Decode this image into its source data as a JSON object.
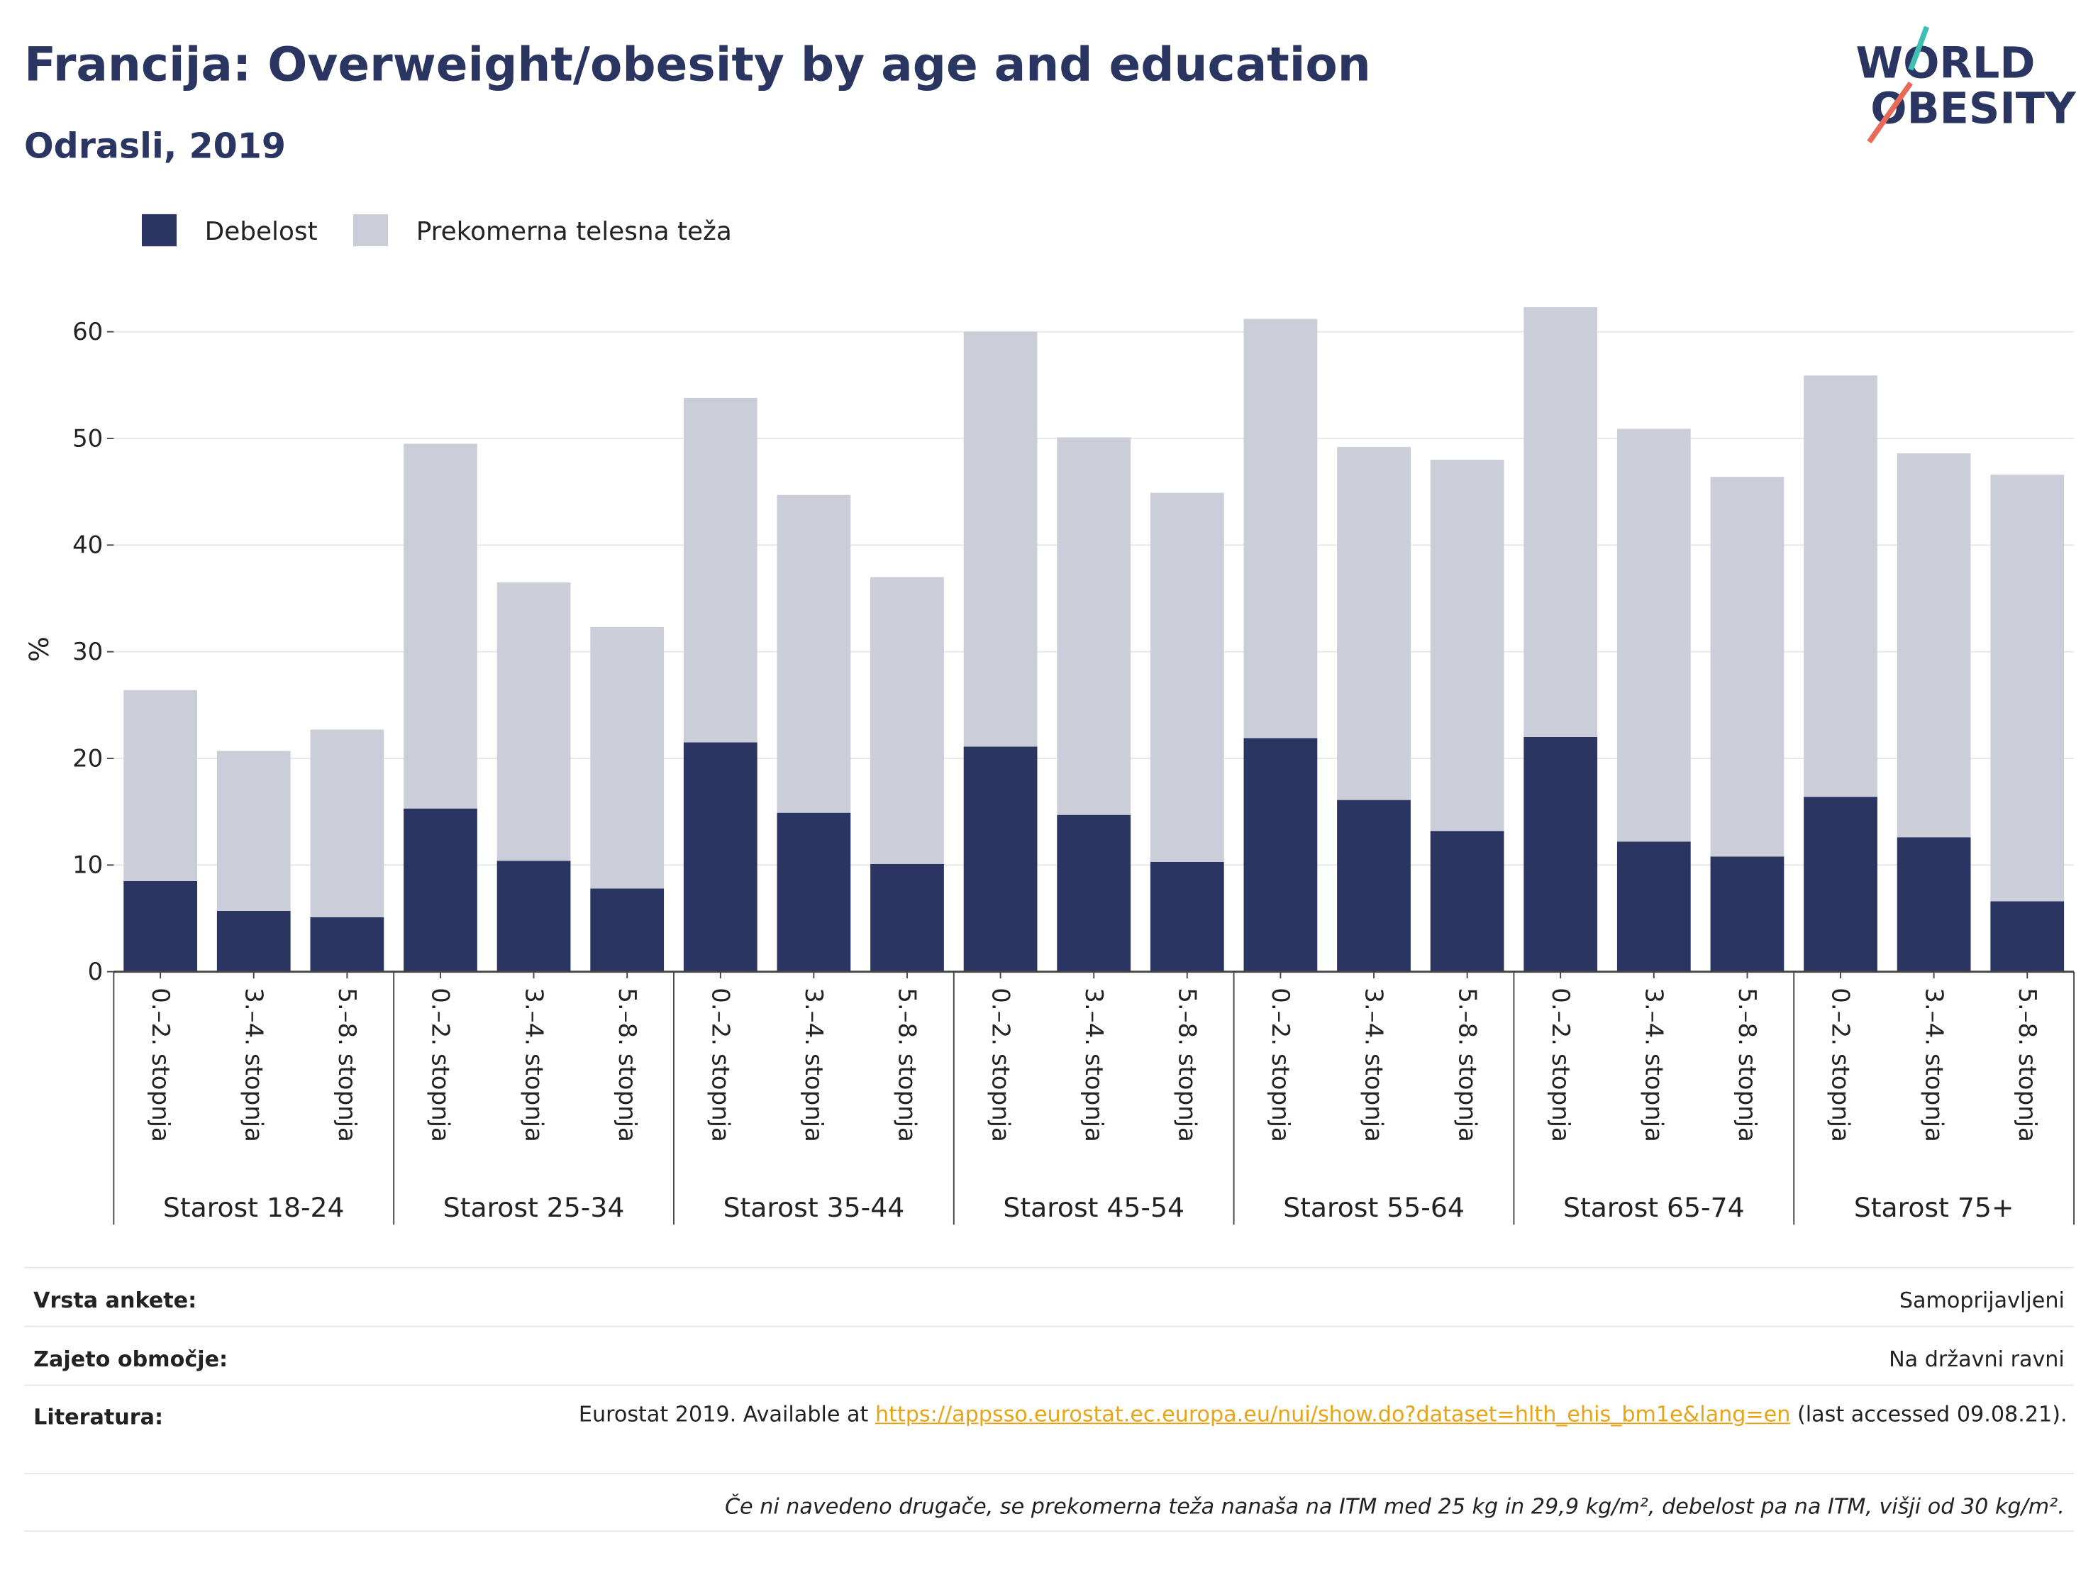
{
  "chart_data": {
    "type": "stacked_bar",
    "title": "Francija: Overweight/obesity by age and education",
    "subtitle": "Odrasli, 2019",
    "y_label": "%",
    "groups": [
      "Starost 18-24",
      "Starost 25-34",
      "Starost 35-44",
      "Starost 45-54",
      "Starost 55-64",
      "Starost 65-74",
      "Starost 75+"
    ],
    "categories": [
      "0.–2. stopnja",
      "3.–4. stopnja",
      "5.–8. stopnja",
      "0.–2. stopnja",
      "3.–4. stopnja",
      "5.–8. stopnja",
      "0.–2. stopnja",
      "3.–4. stopnja",
      "5.–8. stopnja",
      "0.–2. stopnja",
      "3.–4. stopnja",
      "5.–8. stopnja",
      "0.–2. stopnja",
      "3.–4. stopnja",
      "5.–8. stopnja",
      "0.–2. stopnja",
      "3.–4. stopnja",
      "5.–8. stopnja",
      "0.–2. stopnja",
      "3.–4. stopnja",
      "5.–8. stopnja"
    ],
    "series": [
      {
        "name": "Debelost",
        "color": "#2a3561",
        "values": [
          8.5,
          5.7,
          5.1,
          15.3,
          10.4,
          7.8,
          21.5,
          14.9,
          10.1,
          21.1,
          14.7,
          10.3,
          21.9,
          16.1,
          13.2,
          22.0,
          12.2,
          10.8,
          16.4,
          12.6,
          6.6
        ]
      },
      {
        "name": "Prekomerna telesna teža",
        "color": "#cbcdd9",
        "values": [
          17.9,
          15.0,
          17.6,
          34.2,
          26.1,
          24.5,
          32.3,
          29.8,
          26.9,
          38.9,
          35.4,
          34.6,
          39.3,
          33.1,
          34.8,
          40.3,
          38.7,
          35.6,
          39.5,
          36.0,
          40.0
        ]
      }
    ],
    "ylim": [
      0,
      65
    ],
    "yticks": [
      0,
      10,
      20,
      30,
      40,
      50,
      60
    ],
    "grid": true,
    "legend": "top-left"
  },
  "logo": {
    "line1": "WORLD",
    "line2": "OBESITY"
  },
  "info": {
    "rows": [
      {
        "label": "Vrsta ankete:",
        "value": "Samoprijavljeni"
      },
      {
        "label": "Zajeto območje:",
        "value": "Na državni ravni"
      }
    ],
    "literature": {
      "label": "Literatura:",
      "prefix": "Eurostat 2019. Available at ",
      "link": "https://appsso.eurostat.ec.europa.eu/nui/show.do?dataset=hlth_ehis_bm1e&lang=en",
      "suffix": " (last accessed 09.08.21)."
    },
    "note": "Če ni navedeno drugače, se prekomerna teža nanaša na ITM med 25 kg in 29,9 kg/m², debelost pa na ITM, višji od 30 kg/m²."
  }
}
